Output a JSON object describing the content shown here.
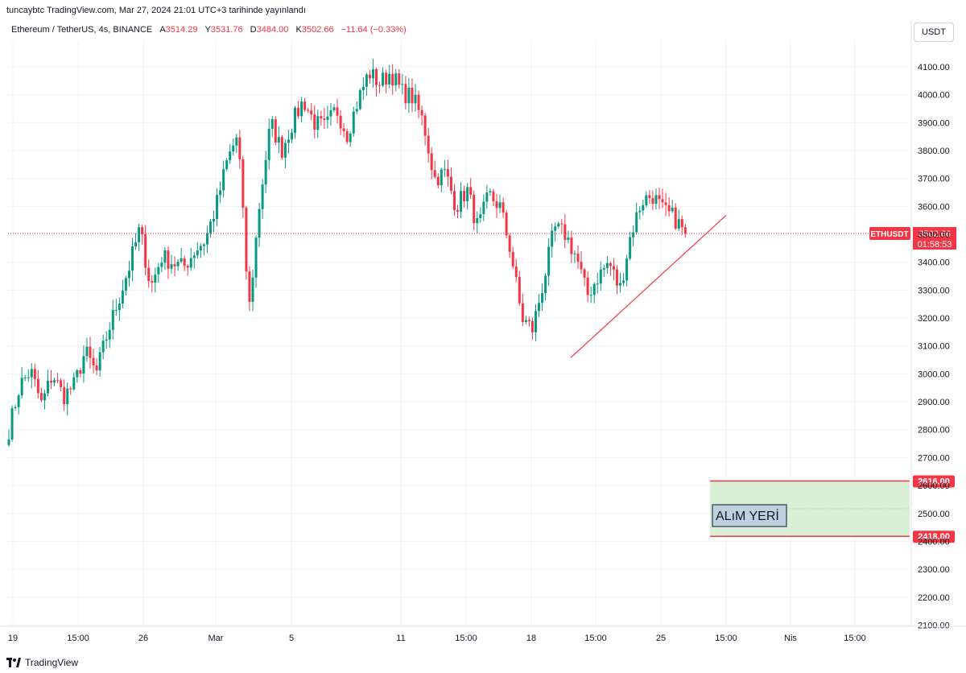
{
  "header": {
    "published": "tuncaybtc TradingView.com, Mar 27, 2024 21:01 UTC+3 tarihinde yayınlandı"
  },
  "legend": {
    "symbol": "Ethereum / TetherUS, 4s, BINANCE",
    "open_label": "A",
    "open": "3514.29",
    "high_label": "Y",
    "high": "3531.76",
    "low_label": "D",
    "low": "3484.00",
    "close_label": "K",
    "close": "3502.66",
    "change": "−11.64 (−0.33%)"
  },
  "currency": "USDT",
  "footer": {
    "brand": "TradingView"
  },
  "colors": {
    "up": "#089981",
    "down": "#f23645",
    "zone_fill": "#d9f0d6",
    "grid": "#f0f3fa",
    "text": "#131722"
  },
  "chart_data": {
    "type": "candlestick",
    "ylim": [
      2080,
      4120
    ],
    "y_ticks": [
      2100,
      2200,
      2300,
      2400,
      2500,
      2600,
      2700,
      2800,
      2900,
      3000,
      3100,
      3200,
      3300,
      3400,
      3500,
      3600,
      3700,
      3800,
      3900,
      4000,
      4100
    ],
    "x_ticks": [
      "19",
      "15:00",
      "26",
      "Mar",
      "5",
      "11",
      "15:00",
      "18",
      "15:00",
      "25",
      "15:00",
      "Nis",
      "15:00"
    ],
    "grid": true,
    "current_price": {
      "label": "ETHUSDT",
      "value": "3502.66",
      "countdown": "01:58:53"
    },
    "zone": {
      "label": "ALıM YERİ",
      "top": 2616.0,
      "bottom": 2418.0,
      "top_label": "2616.00",
      "bottom_label": "2418.00"
    },
    "trendline": {
      "from_price": 3058,
      "to_price": 3568
    },
    "path_points": [
      2800,
      2960,
      3010,
      2890,
      3000,
      2920,
      2960,
      3080,
      3000,
      3140,
      3260,
      3380,
      3520,
      3310,
      3420,
      3400,
      3380,
      3440,
      3480,
      3600,
      3760,
      3860,
      3220,
      3620,
      3900,
      3800,
      3900,
      3980,
      3900,
      3880,
      3950,
      3860,
      3980,
      4080,
      4040,
      4080,
      4010,
      3990,
      3900,
      3700,
      3720,
      3600,
      3660,
      3520,
      3640,
      3600,
      3440,
      3200,
      3160,
      3330,
      3520,
      3500,
      3420,
      3280,
      3350,
      3400,
      3300,
      3500,
      3620,
      3640,
      3580,
      3560,
      3500
    ]
  }
}
